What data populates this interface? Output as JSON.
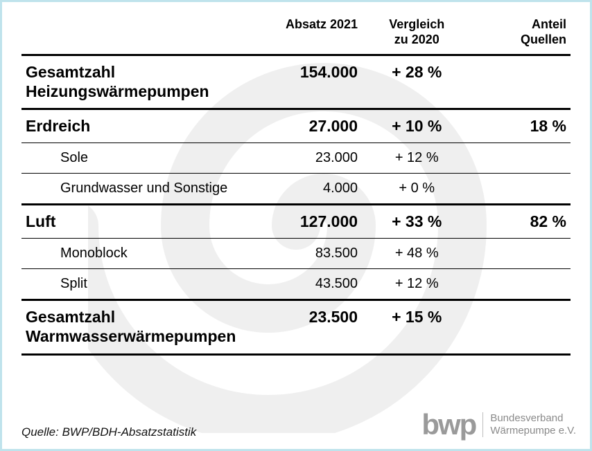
{
  "frame": {
    "border_color": "#bfe3ec"
  },
  "headers": {
    "label": "",
    "absatz": "Absatz 2021",
    "vergleich": "Vergleich\nzu 2020",
    "anteil": "Anteil\nQuellen"
  },
  "rows": [
    {
      "label": "Gesamtzahl\nHeizungswärmepumpen",
      "absatz": "154.000",
      "vergleich": "+ 28 %",
      "anteil": "",
      "style": "bold",
      "border": "thick"
    },
    {
      "label": "Erdreich",
      "absatz": "27.000",
      "vergleich": "+ 10 %",
      "anteil": "18 %",
      "style": "bold",
      "border": "thin"
    },
    {
      "label": "Sole",
      "absatz": "23.000",
      "vergleich": "+ 12 %",
      "anteil": "",
      "style": "sub",
      "border": "thin"
    },
    {
      "label": "Grundwasser und Sonstige",
      "absatz": "4.000",
      "vergleich": "+ 0 %",
      "anteil": "",
      "style": "sub",
      "border": "thick"
    },
    {
      "label": "Luft",
      "absatz": "127.000",
      "vergleich": "+ 33 %",
      "anteil": "82 %",
      "style": "bold",
      "border": "thin"
    },
    {
      "label": "Monoblock",
      "absatz": "83.500",
      "vergleich": "+ 48 %",
      "anteil": "",
      "style": "sub",
      "border": "thin"
    },
    {
      "label": "Split",
      "absatz": "43.500",
      "vergleich": "+ 12 %",
      "anteil": "",
      "style": "sub",
      "border": "thick"
    },
    {
      "label": "Gesamtzahl\nWarmwasserwärmepumpen",
      "absatz": "23.500",
      "vergleich": "+ 15 %",
      "anteil": "",
      "style": "bold",
      "border": "thick"
    }
  ],
  "source": "Quelle: BWP/BDH-Absatzstatistik",
  "logo": {
    "mark": "bwp",
    "text": "Bundesverband\nWärmepumpe e.V."
  },
  "watermark": {
    "color": "#000000",
    "opacity": 0.06
  }
}
